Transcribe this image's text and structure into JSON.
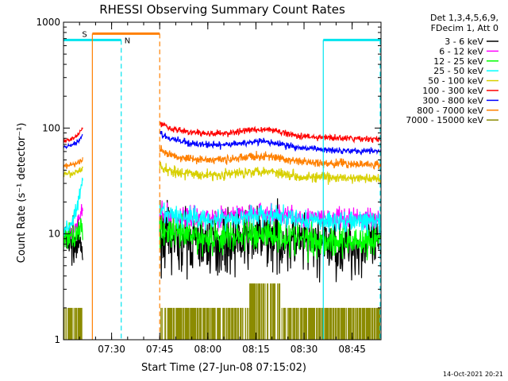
{
  "chart_data": {
    "type": "line",
    "title": "RHESSI Observing Summary Count Rates",
    "xlabel": "Start Time (27-Jun-08 07:15:02)",
    "ylabel": "Count Rate (s⁻¹ detector⁻¹)",
    "y_scale": "log",
    "ylim": [
      1,
      1000
    ],
    "xlim_minutes_from_start": [
      0,
      99
    ],
    "y_ticks": [
      {
        "value": 1,
        "label": "1"
      },
      {
        "value": 10,
        "label": "10"
      },
      {
        "value": 100,
        "label": "100"
      },
      {
        "value": 1000,
        "label": "1000"
      }
    ],
    "x_ticks": [
      {
        "minute": 15,
        "label": "07:30"
      },
      {
        "minute": 30,
        "label": "07:45"
      },
      {
        "minute": 45,
        "label": "08:00"
      },
      {
        "minute": 60,
        "label": "08:15"
      },
      {
        "minute": 75,
        "label": "08:30"
      },
      {
        "minute": 90,
        "label": "08:45"
      }
    ],
    "header": [
      "Det 1,3,4,5,6,9,",
      "FDecim 1, Att 0"
    ],
    "series": [
      {
        "name": "3 - 6 keV",
        "color": "#000000",
        "pre_start": 8.5,
        "pre_end": 7,
        "post_base": 10,
        "post_end_base": 7.5,
        "bump": 0.15,
        "noise": 0.14
      },
      {
        "name": "6 - 12 keV",
        "color": "#ff00ff",
        "pre_start": 10,
        "pre_end": 17,
        "post_base": 15,
        "post_end_base": 14,
        "bump": 0.1,
        "noise": 0.05
      },
      {
        "name": "12 - 25 keV",
        "color": "#00ff00",
        "pre_start": 9,
        "pre_end": 12,
        "post_base": 11,
        "post_end_base": 8.5,
        "bump": 0.12,
        "noise": 0.08
      },
      {
        "name": "25 - 50 keV",
        "color": "#00ffff",
        "pre_start": 11,
        "pre_end": 32,
        "post_base": 16,
        "post_end_base": 13,
        "bump": 0.1,
        "noise": 0.05
      },
      {
        "name": "50 - 100 keV",
        "color": "#d8d000",
        "pre_start": 36,
        "pre_end": 42,
        "post_base": 43,
        "post_end_base": 33,
        "bump": 0.13,
        "noise": 0.025
      },
      {
        "name": "100 - 300 keV",
        "color": "#ff0000",
        "pre_start": 76,
        "pre_end": 100,
        "post_base": 112,
        "post_end_base": 78,
        "bump": 0.15,
        "noise": 0.015
      },
      {
        "name": "300 - 800 keV",
        "color": "#0000ff",
        "pre_start": 66,
        "pre_end": 85,
        "post_base": 90,
        "post_end_base": 60,
        "bump": 0.13,
        "noise": 0.015
      },
      {
        "name": "800 - 7000 keV",
        "color": "#ff8000",
        "pre_start": 44,
        "pre_end": 50,
        "post_base": 62,
        "post_end_base": 45,
        "bump": 0.12,
        "noise": 0.02
      },
      {
        "name": "7000 - 15000 keV",
        "color": "#8b8b00",
        "pre_start": 1.6,
        "pre_end": 1.6,
        "post_base": 1.5,
        "post_end_base": 1.5,
        "bump": 0.0,
        "noise": 0.3
      }
    ],
    "data_gaps_minutes": [
      [
        6,
        30
      ]
    ],
    "night_markers": {
      "label": "N",
      "intervals_minutes": [
        [
          0,
          18
        ],
        [
          81,
          99
        ]
      ],
      "level": 680,
      "color": "#00e5ee"
    },
    "saa_markers": {
      "label": "S",
      "intervals_minutes": [
        [
          9,
          30
        ]
      ],
      "level": 780,
      "color": "#ff8000"
    },
    "footer_date": "14-Oct-2021 20:21"
  }
}
